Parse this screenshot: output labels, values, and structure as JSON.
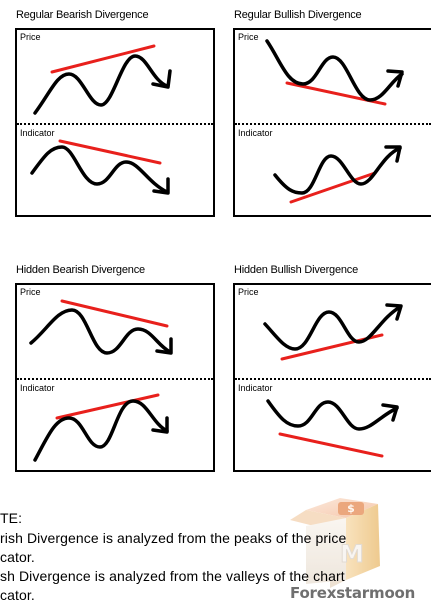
{
  "panels": [
    {
      "title": "Regular Bearish Divergence",
      "top_label": "Price",
      "bottom_label": "Indicator"
    },
    {
      "title": "Regular Bullish Divergence",
      "top_label": "Price",
      "bottom_label": "Indicator"
    },
    {
      "title": "Hidden Bearish Divergence",
      "top_label": "Price",
      "bottom_label": "Indicator"
    },
    {
      "title": "Hidden Bullish Divergence",
      "top_label": "Price",
      "bottom_label": "Indicator"
    }
  ],
  "notes": [
    "TE:",
    "rish Divergence is analyzed from the peaks of the price",
    "cator.",
    "sh Divergence is analyzed from the valleys of the chart",
    "cator."
  ],
  "logo": {
    "text": "Forexstarmoon",
    "badge_symbol": "$",
    "badge_letter": "M"
  },
  "colors": {
    "trend_line": "#e8201c",
    "wave": "#000000",
    "watermark_text": "#6f6f6f"
  }
}
